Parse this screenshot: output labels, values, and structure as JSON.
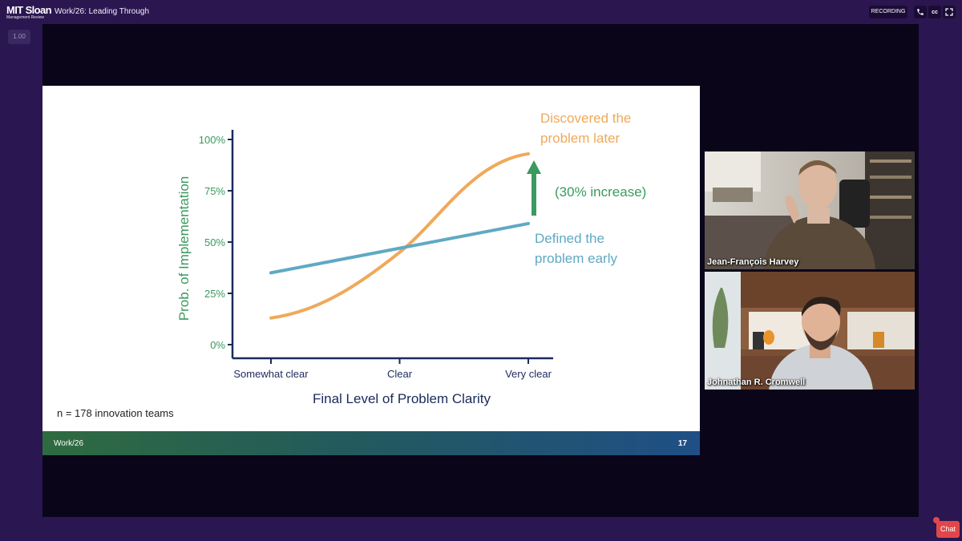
{
  "header": {
    "logo_main": "MIT Sloan",
    "logo_sub": "Management Review",
    "event_title": "Work/26: Leading Through",
    "recording_label": "RECORDING",
    "phone_icon": "phone-icon",
    "cc_label": "cc",
    "fullscreen_icon": "fullscreen-icon"
  },
  "playback": {
    "speed": "1.00"
  },
  "slide": {
    "chart_data": {
      "type": "line",
      "categories": [
        "Somewhat clear",
        "Clear",
        "Very clear"
      ],
      "xlabel": "Final Level of Problem Clarity",
      "ylabel": "Prob. of Implementation",
      "yticks": [
        "0%",
        "25%",
        "50%",
        "75%",
        "100%"
      ],
      "ylim": [
        0,
        100
      ],
      "series": [
        {
          "name": "Discovered the problem later",
          "name_lines": [
            "Discovered the",
            "problem later"
          ],
          "color": "#f0a95a",
          "curve": "sigmoid",
          "x": [
            0,
            0.5,
            1
          ],
          "values": [
            13,
            45,
            93
          ]
        },
        {
          "name": "Defined the problem early",
          "name_lines": [
            "Defined the",
            "problem early"
          ],
          "color": "#5fa9c4",
          "curve": "linear",
          "x": [
            0,
            1
          ],
          "values": [
            35,
            59
          ]
        }
      ],
      "annotation": {
        "text": "(30% increase)",
        "color": "#3a9a5f"
      },
      "axis_label_color": "#3a9a5f",
      "axis_color": "#1b2a5c"
    },
    "note": "n = 178 innovation teams",
    "footer_left": "Work/26",
    "page_number": "17"
  },
  "participants": [
    {
      "name": "Jean-François Harvey"
    },
    {
      "name": "Johnathan R. Cromwell"
    }
  ],
  "chat_label": "Chat"
}
